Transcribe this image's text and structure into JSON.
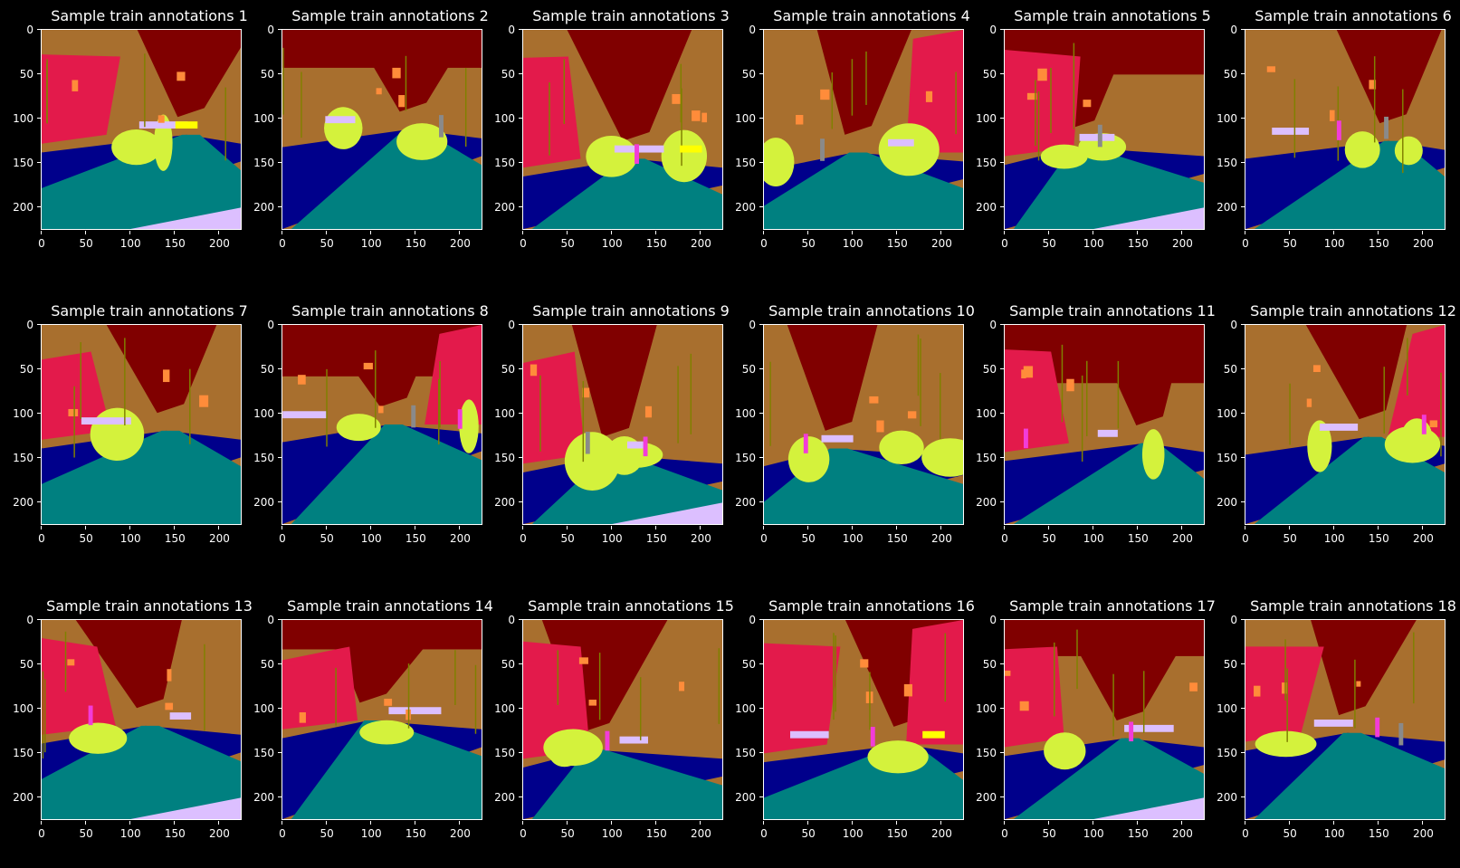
{
  "figure": {
    "background": "#000000",
    "tick_labels": [
      "0",
      "50",
      "100",
      "150",
      "200"
    ],
    "axis_ticks": [
      0,
      50,
      100,
      150,
      200
    ],
    "axis_range": [
      0,
      224
    ],
    "palette": {
      "sky": "#800000",
      "building": "#a86f2e",
      "tree": "#e31a4b",
      "road": "#008080",
      "sidewalk": "#00008b",
      "vegetation": "#d4f23c",
      "pedestrian": "#f23cd9",
      "fence": "#dcbfff",
      "sign": "#ff8c3a",
      "pole": "#808000",
      "car": "#ffff00",
      "rider": "#8a8a8a"
    },
    "panels": [
      {
        "title": "Sample train annotations 1"
      },
      {
        "title": "Sample train annotations 2"
      },
      {
        "title": "Sample train annotations 3"
      },
      {
        "title": "Sample train annotations 4"
      },
      {
        "title": "Sample train annotations 5"
      },
      {
        "title": "Sample train annotations 6"
      },
      {
        "title": "Sample train annotations 7"
      },
      {
        "title": "Sample train annotations 8"
      },
      {
        "title": "Sample train annotations 9"
      },
      {
        "title": "Sample train annotations 10"
      },
      {
        "title": "Sample train annotations 11"
      },
      {
        "title": "Sample train annotations 12"
      },
      {
        "title": "Sample train annotations 13"
      },
      {
        "title": "Sample train annotations 14"
      },
      {
        "title": "Sample train annotations 15"
      },
      {
        "title": "Sample train annotations 16"
      },
      {
        "title": "Sample train annotations 17"
      },
      {
        "title": "Sample train annotations 18"
      }
    ]
  }
}
